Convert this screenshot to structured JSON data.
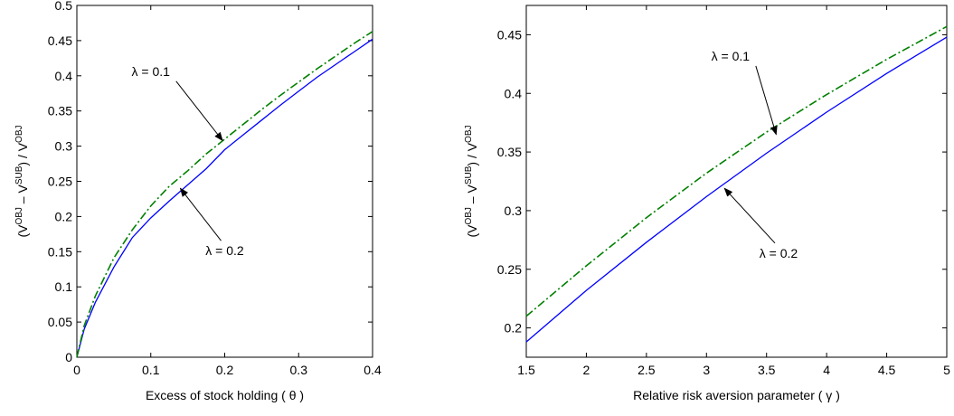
{
  "chart_data": [
    {
      "type": "line",
      "xlabel": "Excess of stock holding ( θ )",
      "ylabel_parts": [
        "(V",
        "OBJ",
        " – V",
        "SUB",
        ") / V",
        "OBJ"
      ],
      "xlim": [
        0,
        0.4
      ],
      "ylim": [
        0,
        0.5
      ],
      "xticks": [
        "0",
        "0.1",
        "0.2",
        "0.3",
        "0.4"
      ],
      "yticks": [
        "0",
        "0.05",
        "0.1",
        "0.15",
        "0.2",
        "0.25",
        "0.3",
        "0.35",
        "0.4",
        "0.45",
        "0.5"
      ],
      "grid": false,
      "series": [
        {
          "color": "#0000ff",
          "dash": "solid",
          "x": [
            0,
            0.01,
            0.025,
            0.05,
            0.075,
            0.1,
            0.125,
            0.15,
            0.175,
            0.2,
            0.225,
            0.25,
            0.275,
            0.3,
            0.325,
            0.35,
            0.375,
            0.4
          ],
          "y": [
            0,
            0.04,
            0.078,
            0.128,
            0.17,
            0.198,
            0.222,
            0.245,
            0.268,
            0.295,
            0.316,
            0.337,
            0.358,
            0.378,
            0.398,
            0.416,
            0.434,
            0.452
          ]
        },
        {
          "color": "#008000",
          "dash": "dashdot",
          "x": [
            0,
            0.01,
            0.025,
            0.05,
            0.075,
            0.1,
            0.125,
            0.15,
            0.175,
            0.2,
            0.225,
            0.25,
            0.275,
            0.3,
            0.325,
            0.35,
            0.375,
            0.4
          ],
          "y": [
            0,
            0.045,
            0.087,
            0.141,
            0.181,
            0.215,
            0.243,
            0.265,
            0.289,
            0.31,
            0.331,
            0.352,
            0.372,
            0.391,
            0.41,
            0.428,
            0.446,
            0.463
          ]
        }
      ],
      "annotations": [
        {
          "text": "λ = 0.1",
          "pos": [
            0.1,
            0.4
          ],
          "arrow_to": [
            0.197,
            0.308
          ]
        },
        {
          "text": "λ = 0.2",
          "pos": [
            0.2,
            0.145
          ],
          "arrow_to": [
            0.14,
            0.24
          ]
        }
      ]
    },
    {
      "type": "line",
      "xlabel": "Relative risk aversion parameter ( γ )",
      "ylabel_parts": [
        "(V",
        "OBJ",
        " – V",
        "SUB",
        ") / V",
        "OBJ"
      ],
      "xlim": [
        1.5,
        5
      ],
      "ylim": [
        0.175,
        0.475
      ],
      "xticks": [
        "1.5",
        "2",
        "2.5",
        "3",
        "3.5",
        "4",
        "4.5",
        "5"
      ],
      "yticks": [
        "0.2",
        "0.25",
        "0.3",
        "0.35",
        "0.4",
        "0.45"
      ],
      "grid": false,
      "series": [
        {
          "color": "#0000ff",
          "dash": "solid",
          "x": [
            1.5,
            2,
            2.5,
            3,
            3.5,
            4,
            4.5,
            5
          ],
          "y": [
            0.188,
            0.232,
            0.273,
            0.312,
            0.349,
            0.384,
            0.417,
            0.448
          ]
        },
        {
          "color": "#008000",
          "dash": "dashdot",
          "x": [
            1.5,
            2,
            2.5,
            3,
            3.5,
            4,
            4.5,
            5
          ],
          "y": [
            0.21,
            0.253,
            0.294,
            0.332,
            0.367,
            0.399,
            0.429,
            0.457
          ]
        }
      ],
      "annotations": [
        {
          "text": "λ = 0.1",
          "pos": [
            3.2,
            0.428
          ],
          "arrow_to": [
            3.58,
            0.365
          ]
        },
        {
          "text": "λ = 0.2",
          "pos": [
            3.6,
            0.26
          ],
          "arrow_to": [
            3.15,
            0.319
          ]
        }
      ]
    }
  ]
}
